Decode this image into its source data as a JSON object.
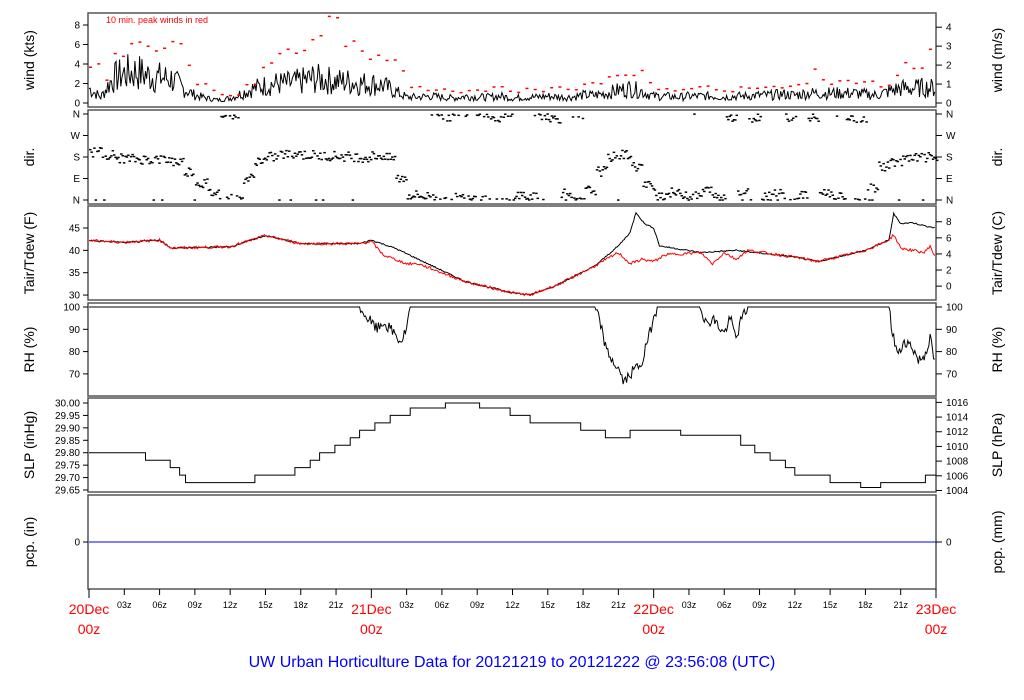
{
  "title": "UW Urban Horticulture Data for 20121219  to  20121222 @ 23:56:08  (UTC)",
  "x_axis": {
    "hours_range": [
      0,
      72
    ],
    "minor_labels": [
      "03z",
      "06z",
      "09z",
      "12z",
      "15z",
      "18z",
      "21z"
    ],
    "day_labels": [
      {
        "hour": 0,
        "date": "20Dec",
        "time": "00z"
      },
      {
        "hour": 24,
        "date": "21Dec",
        "time": "00z"
      },
      {
        "hour": 48,
        "date": "22Dec",
        "time": "00z"
      },
      {
        "hour": 72,
        "date": "23Dec",
        "time": "00z"
      }
    ]
  },
  "colors": {
    "primary": "#000000",
    "peak": "#ff0000",
    "dewpoint": "#ff0000",
    "precip": "#0000ff",
    "title": "#0000ff"
  },
  "chart_data": [
    {
      "type": "line",
      "id": "wind",
      "ylabel": "wind (kts)",
      "ylabel_right": "wind (m/s)",
      "annotation": "10 min. peak winds in red",
      "ylim": [
        0,
        9
      ],
      "left_ticks": [
        "0",
        "2",
        "4",
        "6",
        "8"
      ],
      "right_ticks": [
        "0",
        "1",
        "2",
        "3",
        "4"
      ],
      "hourly_mean_kts": [
        1.5,
        0.6,
        2.5,
        3,
        3.2,
        2.8,
        2.6,
        2.5,
        1.5,
        0.8,
        0.5,
        0.3,
        0.5,
        1,
        1.5,
        1.8,
        2,
        2,
        2.2,
        2.5,
        2.4,
        2.2,
        2.2,
        2,
        2,
        1.8,
        1.2,
        0.6,
        0.6,
        0.7,
        0.6,
        0.5,
        0.7,
        0.6,
        0.6,
        0.7,
        0.5,
        0.6,
        0.6,
        0.7,
        0.6,
        0.6,
        0.8,
        0.8,
        1,
        1.3,
        1.5,
        1.2,
        0.7,
        0.7,
        0.6,
        0.7,
        0.7,
        0.7,
        0.6,
        0.7,
        0.7,
        0.8,
        0.8,
        0.9,
        0.8,
        1,
        1,
        1,
        1,
        1,
        0.9,
        0.8,
        1.2,
        1.5,
        1.5,
        1.6,
        1.5
      ],
      "hourly_peak_kts": [
        4.2,
        2.5,
        5.5,
        7.5,
        6.3,
        6.2,
        6,
        6.5,
        4.5,
        2.2,
        1.5,
        0.9,
        1,
        2.2,
        3.5,
        4.5,
        6,
        5.2,
        6.2,
        7.5,
        8.5,
        7,
        6.5,
        5.5,
        4.8,
        4.5,
        3.2,
        1.8,
        1.5,
        1.6,
        1.4,
        1.2,
        1.5,
        1.3,
        1.6,
        1.5,
        1.2,
        1.6,
        1.4,
        1.7,
        1.5,
        1.6,
        2,
        2.4,
        2.8,
        3,
        3.5,
        2.5,
        1.6,
        1.5,
        1.4,
        1.6,
        1.7,
        1.5,
        1.4,
        1.6,
        1.5,
        1.8,
        1.7,
        2,
        2.2,
        3.4,
        2.5,
        2.3,
        2.6,
        2.5,
        2.2,
        1.8,
        3,
        4,
        3.5,
        5.5,
        4.5
      ]
    },
    {
      "type": "scatter",
      "id": "dir",
      "ylabel": "dir.",
      "ylabel_right": "dir.",
      "ylim": [
        0,
        360
      ],
      "left_ticks": [
        "N",
        "E",
        "S",
        "W",
        "N"
      ],
      "right_ticks": [
        "N",
        "E",
        "S",
        "W",
        "N"
      ],
      "hourly_dir_deg": [
        200,
        190,
        175,
        172,
        170,
        170,
        168,
        160,
        120,
        70,
        30,
        5,
        0,
        90,
        165,
        180,
        190,
        195,
        188,
        185,
        185,
        182,
        180,
        178,
        185,
        175,
        90,
        20,
        15,
        10,
        350,
        10,
        15,
        5,
        345,
        350,
        20,
        10,
        355,
        340,
        30,
        350,
        40,
        120,
        180,
        190,
        140,
        60,
        20,
        30,
        25,
        15,
        40,
        10,
        350,
        30,
        345,
        20,
        35,
        350,
        20,
        340,
        30,
        10,
        350,
        345,
        50,
        140,
        160,
        170,
        175,
        178,
        180
      ]
    },
    {
      "type": "line",
      "id": "temp",
      "ylabel": "Tair/Tdew (F)",
      "ylabel_right": "Tair/Tdew (C)",
      "ylim": [
        29,
        49
      ],
      "left_ticks": [
        "30",
        "35",
        "40",
        "45"
      ],
      "right_ticks": [
        "0",
        "2",
        "4",
        "6",
        "8"
      ],
      "tair_F": [
        [
          0,
          42.2
        ],
        [
          3,
          41.8
        ],
        [
          6,
          42.3
        ],
        [
          7,
          40.5
        ],
        [
          12,
          40.8
        ],
        [
          15,
          43.3
        ],
        [
          18,
          41.5
        ],
        [
          23,
          41.5
        ],
        [
          24,
          42.3
        ],
        [
          26,
          40.5
        ],
        [
          28,
          38
        ],
        [
          32,
          33
        ],
        [
          36,
          30.5
        ],
        [
          37.5,
          30
        ],
        [
          40,
          32.5
        ],
        [
          43,
          36.5
        ],
        [
          45,
          41
        ],
        [
          46,
          44
        ],
        [
          46.5,
          48.5
        ],
        [
          47.2,
          46
        ],
        [
          48,
          45
        ],
        [
          48.5,
          41
        ],
        [
          52,
          39.5
        ],
        [
          55,
          40
        ],
        [
          60,
          38.5
        ],
        [
          62,
          37.5
        ],
        [
          66,
          40
        ],
        [
          68,
          42.3
        ],
        [
          68.4,
          48.2
        ],
        [
          69,
          46
        ],
        [
          70,
          46.2
        ],
        [
          71,
          45.5
        ],
        [
          72,
          45
        ]
      ],
      "tdew_F": [
        [
          0,
          42.2
        ],
        [
          3,
          41.8
        ],
        [
          6,
          42.3
        ],
        [
          7,
          40.5
        ],
        [
          12,
          40.8
        ],
        [
          15,
          43.3
        ],
        [
          18,
          41.5
        ],
        [
          23,
          41.5
        ],
        [
          24,
          42
        ],
        [
          25,
          39
        ],
        [
          26,
          38
        ],
        [
          27,
          37
        ],
        [
          28,
          37
        ],
        [
          32,
          33
        ],
        [
          36,
          30.5
        ],
        [
          37.5,
          30
        ],
        [
          40,
          32.5
        ],
        [
          43,
          36.5
        ],
        [
          45,
          39.5
        ],
        [
          46,
          37
        ],
        [
          47,
          38
        ],
        [
          48,
          37.5
        ],
        [
          49,
          39
        ],
        [
          52,
          39.5
        ],
        [
          53,
          37
        ],
        [
          54,
          39.5
        ],
        [
          55,
          38
        ],
        [
          56,
          40
        ],
        [
          60,
          38.5
        ],
        [
          62,
          37.5
        ],
        [
          66,
          40
        ],
        [
          68,
          42.3
        ],
        [
          68.4,
          43.5
        ],
        [
          69,
          40.5
        ],
        [
          70,
          40
        ],
        [
          71,
          39.5
        ],
        [
          71.5,
          41
        ],
        [
          72,
          38
        ]
      ]
    },
    {
      "type": "line",
      "id": "rh",
      "ylabel": "RH (%)",
      "ylabel_right": "RH (%)",
      "ylim": [
        62,
        101
      ],
      "left_ticks": [
        "70",
        "80",
        "90",
        "100"
      ],
      "right_ticks": [
        "70",
        "80",
        "90",
        "100"
      ],
      "rh_pct": [
        [
          0,
          100
        ],
        [
          23,
          100
        ],
        [
          23.5,
          96
        ],
        [
          24.5,
          90
        ],
        [
          25,
          93
        ],
        [
          26,
          88
        ],
        [
          26.5,
          84
        ],
        [
          27,
          90
        ],
        [
          27.3,
          100
        ],
        [
          43,
          100
        ],
        [
          43.5,
          92
        ],
        [
          44,
          80
        ],
        [
          45,
          72
        ],
        [
          45.5,
          66
        ],
        [
          46,
          70
        ],
        [
          47,
          75
        ],
        [
          47.5,
          85
        ],
        [
          48,
          95
        ],
        [
          48.3,
          100
        ],
        [
          52,
          100
        ],
        [
          52.5,
          92
        ],
        [
          53,
          95
        ],
        [
          54,
          88
        ],
        [
          54.5,
          95
        ],
        [
          55,
          86
        ],
        [
          55.5,
          95
        ],
        [
          56,
          100
        ],
        [
          68,
          100
        ],
        [
          68.3,
          88
        ],
        [
          68.8,
          78
        ],
        [
          69.3,
          85
        ],
        [
          70,
          82
        ],
        [
          70.5,
          76
        ],
        [
          71,
          78
        ],
        [
          71.5,
          86
        ],
        [
          72,
          72
        ]
      ]
    },
    {
      "type": "line",
      "id": "slp",
      "ylabel": "SLP (inHg)",
      "ylabel_right": "SLP (hPa)",
      "ylim": [
        29.64,
        30.01
      ],
      "left_ticks": [
        "29.65",
        "29.70",
        "29.75",
        "29.80",
        "29.85",
        "29.90",
        "29.95",
        "30.00"
      ],
      "right_ticks": [
        "1004",
        "1006",
        "1008",
        "1010",
        "1012",
        "1014",
        "1016"
      ],
      "slp_inHg_steps": [
        [
          0,
          29.8
        ],
        [
          4.8,
          29.77
        ],
        [
          6.9,
          29.74
        ],
        [
          7.7,
          29.71
        ],
        [
          8.2,
          29.68
        ],
        [
          14.1,
          29.71
        ],
        [
          17.5,
          29.74
        ],
        [
          18.8,
          29.77
        ],
        [
          19.6,
          29.8
        ],
        [
          20.9,
          29.83
        ],
        [
          22.2,
          29.86
        ],
        [
          23.0,
          29.89
        ],
        [
          24.3,
          29.92
        ],
        [
          25.6,
          29.95
        ],
        [
          27.3,
          29.98
        ],
        [
          30.3,
          30.0
        ],
        [
          33.2,
          29.98
        ],
        [
          35.8,
          29.95
        ],
        [
          37.5,
          29.92
        ],
        [
          41.8,
          29.89
        ],
        [
          43.9,
          29.86
        ],
        [
          46.0,
          29.89
        ],
        [
          50.3,
          29.87
        ],
        [
          55.4,
          29.83
        ],
        [
          56.6,
          29.8
        ],
        [
          57.9,
          29.77
        ],
        [
          59.2,
          29.74
        ],
        [
          60.0,
          29.71
        ],
        [
          63.0,
          29.68
        ],
        [
          65.6,
          29.66
        ],
        [
          67.3,
          29.68
        ],
        [
          71.1,
          29.71
        ],
        [
          72,
          29.71
        ]
      ]
    },
    {
      "type": "line",
      "id": "pcp",
      "ylabel": "pcp. (in)",
      "ylabel_right": "pcp. (mm)",
      "left_ticks": [
        "0"
      ],
      "right_ticks": [
        "0"
      ],
      "pcp_in": [
        [
          0,
          0
        ],
        [
          72,
          0
        ]
      ]
    }
  ]
}
